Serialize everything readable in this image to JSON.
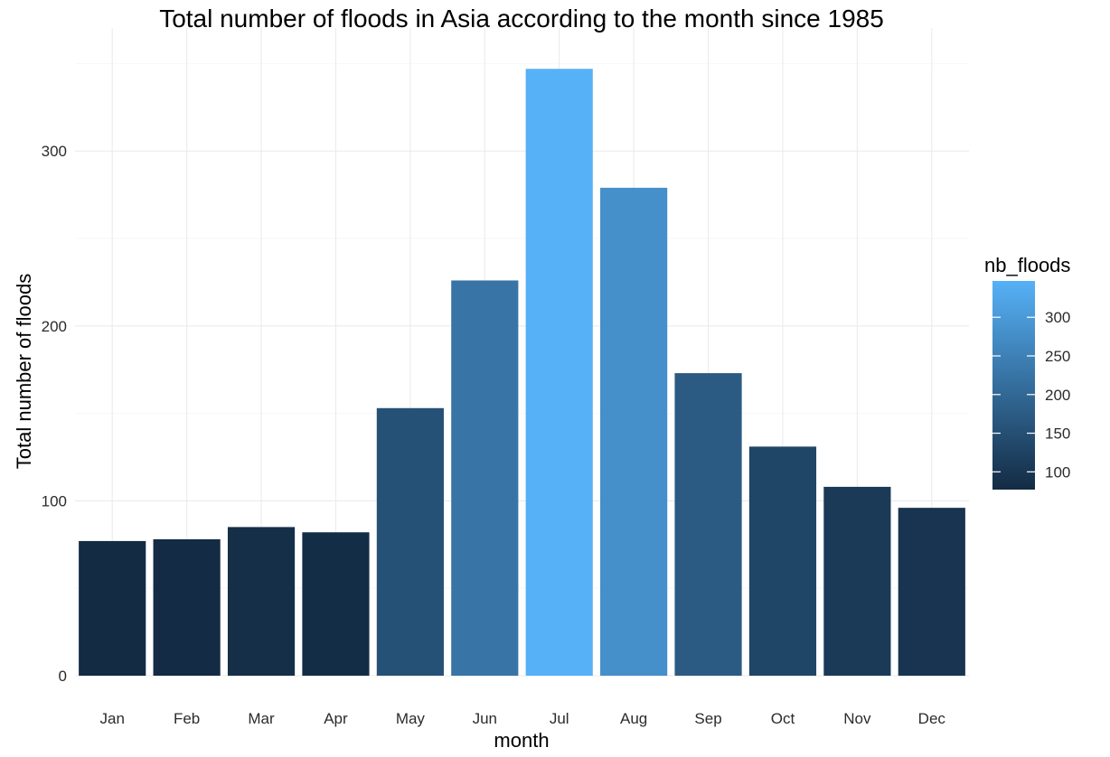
{
  "chart_data": {
    "type": "bar",
    "title": "Total number of floods in Asia according to the month since 1985",
    "xlabel": "month",
    "ylabel": "Total number of floods",
    "categories": [
      "Jan",
      "Feb",
      "Mar",
      "Apr",
      "May",
      "Jun",
      "Jul",
      "Aug",
      "Sep",
      "Oct",
      "Nov",
      "Dec"
    ],
    "values": [
      77,
      78,
      85,
      82,
      153,
      226,
      347,
      279,
      173,
      131,
      108,
      96
    ],
    "ylim": [
      0,
      360
    ],
    "yticks": [
      0,
      100,
      200,
      300
    ],
    "grid": true,
    "legend": {
      "title": "nb_floods",
      "type": "continuous-colorbar",
      "placement": "right",
      "ticks": [
        100,
        150,
        200,
        250,
        300
      ],
      "tick_labels": [
        "100",
        "150",
        "200",
        "250",
        "300"
      ],
      "range": [
        77,
        347
      ],
      "color_low": "#132B43",
      "color_high": "#56B1F7"
    }
  }
}
